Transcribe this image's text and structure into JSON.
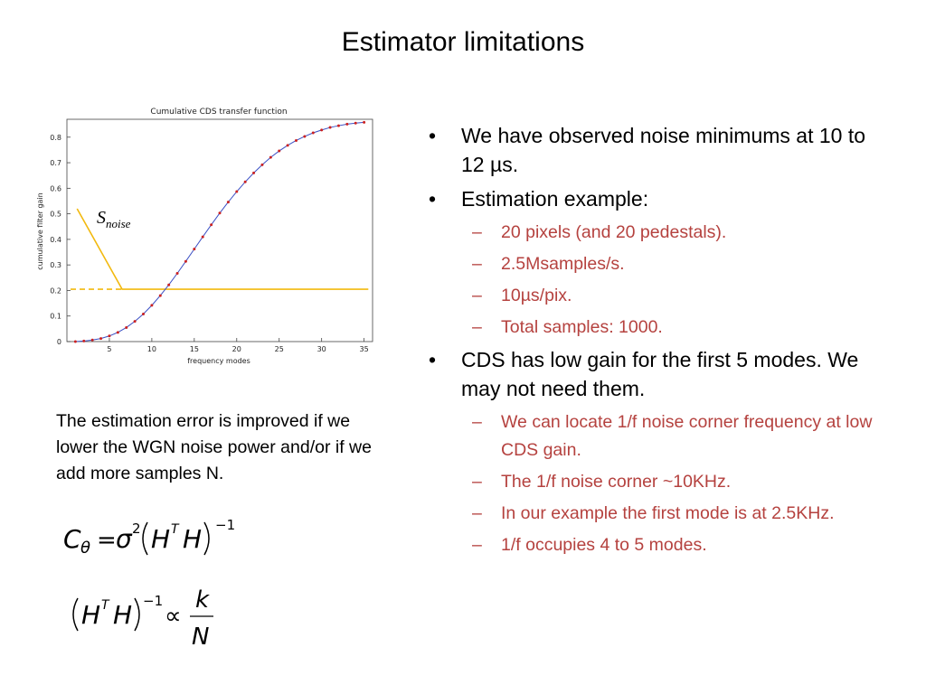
{
  "slide": {
    "title": "Estimator limitations",
    "left_note": "The estimation error is improved if we lower the WGN noise power and/or if we add more samples N."
  },
  "bullets": [
    {
      "text": "We have observed noise minimums at 10 to 12 µs.",
      "sub": []
    },
    {
      "text": "Estimation example:",
      "sub": [
        "20 pixels (and 20 pedestals).",
        "2.5Msamples/s.",
        "10µs/pix.",
        "Total samples: 1000."
      ]
    },
    {
      "text": "CDS has low gain for the first 5 modes. We may not need them.",
      "sub": [
        "We can locate 1/f noise corner frequency at low CDS gain.",
        "The 1/f noise corner ~10KHz.",
        "In our example the first mode is at 2.5KHz.",
        "1/f occupies 4 to 5 modes."
      ]
    }
  ],
  "formulas": {
    "f1": {
      "C": "C",
      "theta": "θ",
      "eq": "=",
      "sigma": "σ",
      "two": "2",
      "H": "H",
      "T": "T",
      "inv": "−1"
    },
    "f2": {
      "H": "H",
      "T": "T",
      "inv": "−1",
      "prop": "∝",
      "k": "k",
      "N": "N"
    }
  },
  "chart_data": {
    "type": "line",
    "title": "Cumulative CDS transfer function",
    "xlabel": "frequency modes",
    "ylabel": "cumulative filter gain",
    "xlim": [
      0,
      36
    ],
    "ylim": [
      0,
      0.87
    ],
    "xticks": [
      5,
      10,
      15,
      20,
      25,
      30,
      35
    ],
    "yticks": [
      0,
      0.1,
      0.2,
      0.3,
      0.4,
      0.5,
      0.6,
      0.7,
      0.8
    ],
    "ytick_labels": [
      "0",
      "0.1",
      "0.2",
      "0.3",
      "0.4",
      "0.5",
      "0.6",
      "0.7",
      "0.8"
    ],
    "grid": false,
    "series": [
      {
        "style": "blue line with red dot markers",
        "color": "#3a4fc4",
        "marker_color": "#cc2222",
        "x": [
          1,
          2,
          3,
          4,
          5,
          6,
          7,
          8,
          9,
          10,
          11,
          12,
          13,
          14,
          15,
          16,
          17,
          18,
          19,
          20,
          21,
          22,
          23,
          24,
          25,
          26,
          27,
          28,
          29,
          30,
          31,
          32,
          33,
          34,
          35
        ],
        "y": [
          0.0,
          0.002,
          0.006,
          0.012,
          0.022,
          0.036,
          0.055,
          0.079,
          0.108,
          0.142,
          0.18,
          0.222,
          0.267,
          0.314,
          0.362,
          0.41,
          0.457,
          0.503,
          0.546,
          0.587,
          0.625,
          0.66,
          0.692,
          0.721,
          0.746,
          0.768,
          0.787,
          0.803,
          0.817,
          0.828,
          0.838,
          0.845,
          0.851,
          0.855,
          0.858
        ]
      }
    ],
    "overlay": {
      "color": "#f2b90f",
      "label_main": "S",
      "label_sub": "noise",
      "line_points": [
        [
          1.2,
          0.52
        ],
        [
          6.5,
          0.205
        ],
        [
          35.5,
          0.205
        ]
      ],
      "dashed_from": 0,
      "dashed_to": 6.5,
      "level": 0.205
    }
  }
}
